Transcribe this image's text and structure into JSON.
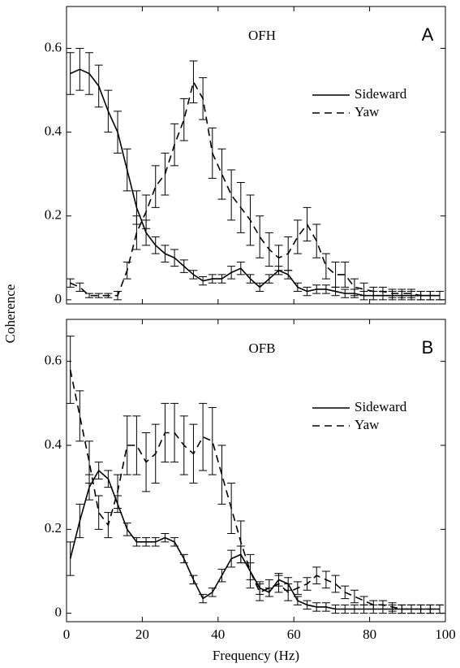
{
  "chart_data": [
    {
      "type": "line",
      "annotation": "OFH",
      "panel_label": "A",
      "y_label": "Coherence",
      "x": [
        1,
        3.5,
        6,
        8.5,
        11,
        13.5,
        16,
        18.5,
        21,
        23.5,
        26,
        28.5,
        31,
        33.5,
        36,
        38.5,
        41,
        43.5,
        46,
        48.5,
        51,
        53.5,
        56,
        58.5,
        61,
        63.5,
        66,
        68.5,
        71,
        73.5,
        76,
        78.5,
        81,
        83.5,
        86,
        88.5,
        91,
        93.5,
        96,
        98.5
      ],
      "series": [
        {
          "name": "Sideward",
          "color": "#000000",
          "style": "solid",
          "values": [
            0.54,
            0.55,
            0.54,
            0.51,
            0.45,
            0.4,
            0.31,
            0.22,
            0.16,
            0.13,
            0.11,
            0.1,
            0.08,
            0.06,
            0.045,
            0.05,
            0.05,
            0.065,
            0.075,
            0.05,
            0.03,
            0.05,
            0.07,
            0.06,
            0.03,
            0.02,
            0.025,
            0.025,
            0.02,
            0.015,
            0.015,
            0.01,
            0.01,
            0.01,
            0.01,
            0.01,
            0.01,
            0.01,
            0.01,
            0.01
          ],
          "errors": [
            0.05,
            0.05,
            0.05,
            0.05,
            0.05,
            0.05,
            0.05,
            0.04,
            0.03,
            0.02,
            0.02,
            0.02,
            0.015,
            0.01,
            0.01,
            0.01,
            0.01,
            0.015,
            0.015,
            0.01,
            0.01,
            0.01,
            0.01,
            0.01,
            0.01,
            0.01,
            0.01,
            0.01,
            0.01,
            0.01,
            0.01,
            0.01,
            0.01,
            0.01,
            0.01,
            0.01,
            0.01,
            0.01,
            0.01,
            0.01
          ]
        },
        {
          "name": "Yaw",
          "color": "#000000",
          "style": "dashed",
          "values": [
            0.04,
            0.03,
            0.01,
            0.01,
            0.01,
            0.01,
            0.07,
            0.16,
            0.21,
            0.27,
            0.3,
            0.37,
            0.43,
            0.52,
            0.48,
            0.35,
            0.3,
            0.25,
            0.22,
            0.19,
            0.15,
            0.12,
            0.1,
            0.11,
            0.15,
            0.18,
            0.14,
            0.08,
            0.06,
            0.06,
            0.03,
            0.025,
            0.02,
            0.02,
            0.015,
            0.015,
            0.015,
            0.01,
            0.01,
            0.01
          ],
          "errors": [
            0.01,
            0.01,
            0.005,
            0.005,
            0.005,
            0.01,
            0.02,
            0.04,
            0.04,
            0.05,
            0.05,
            0.05,
            0.05,
            0.05,
            0.05,
            0.06,
            0.06,
            0.06,
            0.06,
            0.06,
            0.05,
            0.04,
            0.03,
            0.04,
            0.04,
            0.04,
            0.04,
            0.03,
            0.03,
            0.03,
            0.02,
            0.015,
            0.01,
            0.01,
            0.01,
            0.01,
            0.01,
            0.01,
            0.01,
            0.01
          ]
        }
      ],
      "xlim": [
        0,
        100
      ],
      "ylim": [
        -0.01,
        0.7
      ],
      "yticks": [
        0,
        0.2,
        0.4,
        0.6
      ],
      "legend": "upper right"
    },
    {
      "type": "line",
      "annotation": "OFB",
      "panel_label": "B",
      "x_label": "Frequency (Hz)",
      "x": [
        1,
        3.5,
        6,
        8.5,
        11,
        13.5,
        16,
        18.5,
        21,
        23.5,
        26,
        28.5,
        31,
        33.5,
        36,
        38.5,
        41,
        43.5,
        46,
        48.5,
        51,
        53.5,
        56,
        58.5,
        61,
        63.5,
        66,
        68.5,
        71,
        73.5,
        76,
        78.5,
        81,
        83.5,
        86,
        88.5,
        91,
        93.5,
        96,
        98.5
      ],
      "series": [
        {
          "name": "Sideward",
          "color": "#000000",
          "style": "solid",
          "values": [
            0.13,
            0.22,
            0.3,
            0.34,
            0.32,
            0.26,
            0.2,
            0.17,
            0.17,
            0.17,
            0.18,
            0.17,
            0.13,
            0.08,
            0.035,
            0.05,
            0.09,
            0.13,
            0.14,
            0.1,
            0.06,
            0.05,
            0.08,
            0.07,
            0.03,
            0.02,
            0.015,
            0.015,
            0.01,
            0.01,
            0.01,
            0.01,
            0.01,
            0.01,
            0.01,
            0.01,
            0.01,
            0.01,
            0.01,
            0.01
          ],
          "errors": [
            0.04,
            0.04,
            0.03,
            0.02,
            0.02,
            0.02,
            0.015,
            0.01,
            0.01,
            0.01,
            0.01,
            0.01,
            0.01,
            0.01,
            0.01,
            0.01,
            0.015,
            0.02,
            0.02,
            0.02,
            0.015,
            0.01,
            0.015,
            0.015,
            0.01,
            0.01,
            0.01,
            0.01,
            0.01,
            0.01,
            0.01,
            0.01,
            0.01,
            0.01,
            0.01,
            0.01,
            0.01,
            0.01,
            0.01,
            0.01
          ]
        },
        {
          "name": "Yaw",
          "color": "#000000",
          "style": "dashed",
          "values": [
            0.58,
            0.47,
            0.36,
            0.24,
            0.21,
            0.29,
            0.4,
            0.4,
            0.36,
            0.38,
            0.43,
            0.43,
            0.4,
            0.38,
            0.42,
            0.41,
            0.33,
            0.25,
            0.17,
            0.1,
            0.05,
            0.06,
            0.07,
            0.05,
            0.06,
            0.07,
            0.09,
            0.08,
            0.07,
            0.05,
            0.04,
            0.03,
            0.02,
            0.02,
            0.015,
            0.01,
            0.01,
            0.01,
            0.01,
            0.01
          ],
          "errors": [
            0.08,
            0.06,
            0.05,
            0.04,
            0.03,
            0.04,
            0.07,
            0.07,
            0.07,
            0.07,
            0.07,
            0.07,
            0.07,
            0.07,
            0.08,
            0.08,
            0.07,
            0.06,
            0.05,
            0.04,
            0.02,
            0.02,
            0.02,
            0.02,
            0.015,
            0.015,
            0.02,
            0.02,
            0.02,
            0.015,
            0.015,
            0.01,
            0.01,
            0.01,
            0.01,
            0.01,
            0.01,
            0.01,
            0.01,
            0.01
          ]
        }
      ],
      "xlim": [
        0,
        100
      ],
      "xticks": [
        0,
        20,
        40,
        60,
        80,
        100
      ],
      "ylim": [
        -0.02,
        0.7
      ],
      "yticks": [
        0,
        0.2,
        0.4,
        0.6
      ],
      "legend": "upper right"
    }
  ]
}
